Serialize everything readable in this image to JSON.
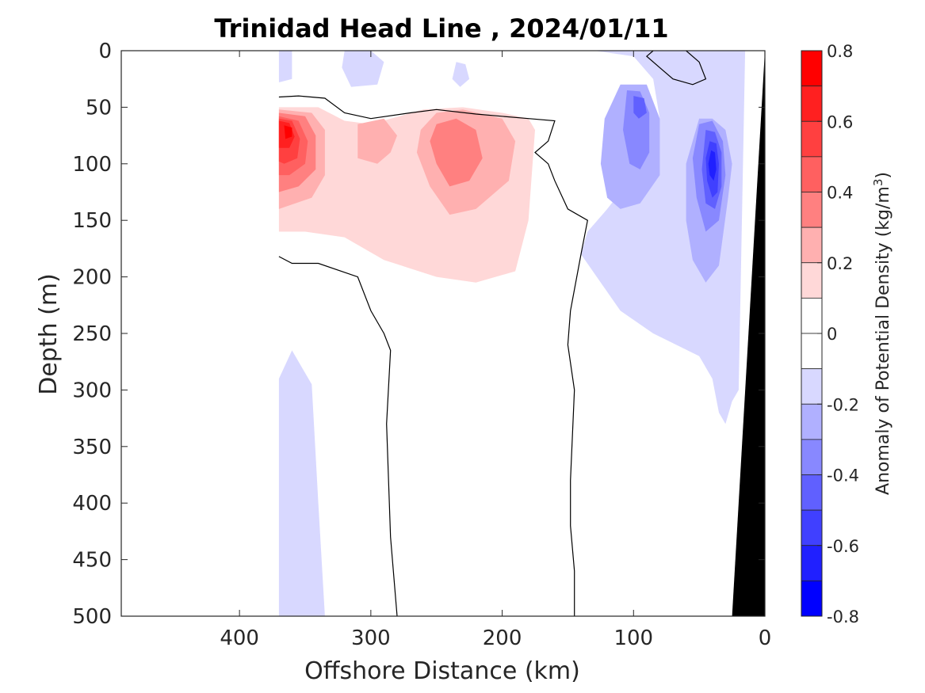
{
  "chart_data": {
    "type": "heatmap",
    "subtype": "filled contour section",
    "title": "Trinidad Head Line , 2024/01/11",
    "xlabel": "Offshore Distance (km)",
    "ylabel": "Depth (m)",
    "colorbar_label": "Anomaly of Potential Density (kg/m",
    "colorbar_label_superscript": "3",
    "colorbar_label_close": ")",
    "xlim": [
      490,
      0
    ],
    "x_reversed": true,
    "ylim": [
      0,
      500
    ],
    "y_reversed": true,
    "x_ticks": [
      "400",
      "300",
      "200",
      "100",
      "0"
    ],
    "x_tick_values": [
      400,
      300,
      200,
      100,
      0
    ],
    "y_ticks": [
      "0",
      "50",
      "100",
      "150",
      "200",
      "250",
      "300",
      "350",
      "400",
      "450",
      "500"
    ],
    "y_tick_values": [
      0,
      50,
      100,
      150,
      200,
      250,
      300,
      350,
      400,
      450,
      500
    ],
    "colorbar_range": [
      -0.8,
      0.8
    ],
    "colorbar_ticks": [
      "0.8",
      "0.6",
      "0.4",
      "0.2",
      "0",
      "-0.2",
      "-0.4",
      "-0.6",
      "-0.8"
    ],
    "colorbar_tick_values": [
      0.8,
      0.6,
      0.4,
      0.2,
      0,
      -0.2,
      -0.4,
      -0.6,
      -0.8
    ],
    "levels": [
      {
        "lo": 0.7,
        "hi": 0.8,
        "color": "#ff0000"
      },
      {
        "lo": 0.6,
        "hi": 0.7,
        "color": "#ff2020"
      },
      {
        "lo": 0.5,
        "hi": 0.6,
        "color": "#ff4040"
      },
      {
        "lo": 0.4,
        "hi": 0.5,
        "color": "#ff6060"
      },
      {
        "lo": 0.3,
        "hi": 0.4,
        "color": "#ff8080"
      },
      {
        "lo": 0.2,
        "hi": 0.3,
        "color": "#ffb0b0"
      },
      {
        "lo": 0.1,
        "hi": 0.2,
        "color": "#ffd8d8"
      },
      {
        "lo": 0.0,
        "hi": 0.1,
        "color": "#ffffff"
      },
      {
        "lo": -0.1,
        "hi": 0.0,
        "color": "#ffffff"
      },
      {
        "lo": -0.2,
        "hi": -0.1,
        "color": "#d8d8ff"
      },
      {
        "lo": -0.3,
        "hi": -0.2,
        "color": "#b0b0ff"
      },
      {
        "lo": -0.4,
        "hi": -0.3,
        "color": "#8888ff"
      },
      {
        "lo": -0.5,
        "hi": -0.4,
        "color": "#6060ff"
      },
      {
        "lo": -0.6,
        "hi": -0.5,
        "color": "#4040ff"
      },
      {
        "lo": -0.7,
        "hi": -0.6,
        "color": "#2020ff"
      },
      {
        "lo": -0.8,
        "hi": -0.7,
        "color": "#0000ff"
      }
    ],
    "regions": [
      {
        "name": "pos-0.1",
        "color": "#ffd8d8",
        "points": [
          [
            370,
            50
          ],
          [
            340,
            50
          ],
          [
            320,
            62
          ],
          [
            300,
            65
          ],
          [
            260,
            52
          ],
          [
            230,
            50
          ],
          [
            200,
            55
          ],
          [
            180,
            60
          ],
          [
            175,
            70
          ],
          [
            180,
            150
          ],
          [
            190,
            195
          ],
          [
            220,
            205
          ],
          [
            250,
            200
          ],
          [
            290,
            185
          ],
          [
            320,
            165
          ],
          [
            350,
            160
          ],
          [
            370,
            160
          ]
        ]
      },
      {
        "name": "pos-0.2",
        "color": "#ffb0b0",
        "points": [
          [
            370,
            52
          ],
          [
            345,
            55
          ],
          [
            335,
            70
          ],
          [
            335,
            110
          ],
          [
            345,
            130
          ],
          [
            370,
            140
          ]
        ]
      },
      {
        "name": "pos-0.2b",
        "color": "#ffb0b0",
        "points": [
          [
            310,
            65
          ],
          [
            290,
            60
          ],
          [
            280,
            75
          ],
          [
            285,
            90
          ],
          [
            295,
            100
          ],
          [
            310,
            95
          ]
        ]
      },
      {
        "name": "pos-0.2c",
        "color": "#ffb0b0",
        "points": [
          [
            250,
            55
          ],
          [
            230,
            52
          ],
          [
            200,
            60
          ],
          [
            190,
            80
          ],
          [
            195,
            115
          ],
          [
            220,
            140
          ],
          [
            240,
            145
          ],
          [
            255,
            120
          ],
          [
            265,
            90
          ],
          [
            262,
            70
          ]
        ]
      },
      {
        "name": "pos-0.3",
        "color": "#ff8080",
        "points": [
          [
            370,
            55
          ],
          [
            350,
            58
          ],
          [
            342,
            75
          ],
          [
            342,
            105
          ],
          [
            355,
            120
          ],
          [
            370,
            125
          ]
        ]
      },
      {
        "name": "pos-0.3b",
        "color": "#ff8080",
        "points": [
          [
            250,
            65
          ],
          [
            235,
            60
          ],
          [
            220,
            70
          ],
          [
            215,
            95
          ],
          [
            225,
            115
          ],
          [
            240,
            120
          ],
          [
            250,
            100
          ],
          [
            255,
            80
          ]
        ]
      },
      {
        "name": "pos-0.4",
        "color": "#ff6060",
        "points": [
          [
            370,
            58
          ],
          [
            355,
            62
          ],
          [
            348,
            80
          ],
          [
            350,
            100
          ],
          [
            362,
            110
          ],
          [
            370,
            110
          ]
        ]
      },
      {
        "name": "pos-0.5",
        "color": "#ff4040",
        "points": [
          [
            370,
            60
          ],
          [
            360,
            62
          ],
          [
            354,
            78
          ],
          [
            356,
            95
          ],
          [
            366,
            100
          ],
          [
            370,
            98
          ]
        ]
      },
      {
        "name": "pos-0.6",
        "color": "#ff2020",
        "points": [
          [
            370,
            62
          ],
          [
            362,
            64
          ],
          [
            358,
            76
          ],
          [
            362,
            86
          ],
          [
            370,
            86
          ]
        ]
      },
      {
        "name": "pos-0.7",
        "color": "#ff0000",
        "points": [
          [
            366,
            66
          ],
          [
            360,
            68
          ],
          [
            360,
            76
          ],
          [
            365,
            78
          ]
        ]
      },
      {
        "name": "pos-top",
        "color": "#ffd8d8",
        "points": [
          [
            65,
            0
          ],
          [
            55,
            8
          ],
          [
            52,
            15
          ],
          [
            60,
            22
          ],
          [
            70,
            20
          ],
          [
            73,
            10
          ]
        ]
      },
      {
        "name": "neg-0.1-left",
        "color": "#d8d8ff",
        "points": [
          [
            370,
            0
          ],
          [
            360,
            0
          ],
          [
            360,
            25
          ],
          [
            370,
            28
          ]
        ]
      },
      {
        "name": "neg-0.1-left2",
        "color": "#d8d8ff",
        "points": [
          [
            320,
            0
          ],
          [
            300,
            0
          ],
          [
            290,
            10
          ],
          [
            295,
            30
          ],
          [
            315,
            32
          ],
          [
            322,
            15
          ]
        ]
      },
      {
        "name": "neg-0.1-left3",
        "color": "#d8d8ff",
        "points": [
          [
            235,
            10
          ],
          [
            228,
            12
          ],
          [
            225,
            25
          ],
          [
            232,
            32
          ],
          [
            238,
            25
          ]
        ]
      },
      {
        "name": "neg-0.1-deep",
        "color": "#d8d8ff",
        "points": [
          [
            370,
            500
          ],
          [
            370,
            290
          ],
          [
            360,
            265
          ],
          [
            345,
            295
          ],
          [
            340,
            400
          ],
          [
            335,
            500
          ]
        ]
      },
      {
        "name": "neg-0.1-right",
        "color": "#d8d8ff",
        "points": [
          [
            130,
            0
          ],
          [
            100,
            5
          ],
          [
            85,
            25
          ],
          [
            80,
            60
          ],
          [
            100,
            110
          ],
          [
            120,
            140
          ],
          [
            135,
            160
          ],
          [
            140,
            180
          ],
          [
            110,
            230
          ],
          [
            85,
            250
          ],
          [
            50,
            270
          ],
          [
            40,
            290
          ],
          [
            35,
            320
          ],
          [
            30,
            330
          ],
          [
            25,
            310
          ],
          [
            20,
            300
          ],
          [
            18,
            180
          ],
          [
            15,
            0
          ]
        ]
      },
      {
        "name": "neg-0.2",
        "color": "#b0b0ff",
        "points": [
          [
            110,
            30
          ],
          [
            90,
            30
          ],
          [
            80,
            60
          ],
          [
            80,
            110
          ],
          [
            95,
            135
          ],
          [
            110,
            140
          ],
          [
            120,
            130
          ],
          [
            125,
            100
          ],
          [
            122,
            60
          ]
        ]
      },
      {
        "name": "neg-0.2b",
        "color": "#b0b0ff",
        "points": [
          [
            50,
            60
          ],
          [
            40,
            60
          ],
          [
            30,
            70
          ],
          [
            25,
            100
          ],
          [
            28,
            130
          ],
          [
            35,
            190
          ],
          [
            45,
            205
          ],
          [
            55,
            185
          ],
          [
            60,
            150
          ],
          [
            60,
            100
          ]
        ]
      },
      {
        "name": "neg-0.3",
        "color": "#8888ff",
        "points": [
          [
            105,
            35
          ],
          [
            95,
            36
          ],
          [
            88,
            55
          ],
          [
            88,
            90
          ],
          [
            95,
            105
          ],
          [
            103,
            100
          ],
          [
            108,
            70
          ]
        ]
      },
      {
        "name": "neg-0.3b",
        "color": "#8888ff",
        "points": [
          [
            50,
            65
          ],
          [
            40,
            62
          ],
          [
            32,
            80
          ],
          [
            30,
            110
          ],
          [
            35,
            150
          ],
          [
            45,
            160
          ],
          [
            52,
            130
          ],
          [
            55,
            95
          ]
        ]
      },
      {
        "name": "neg-0.4",
        "color": "#6060ff",
        "points": [
          [
            100,
            40
          ],
          [
            92,
            42
          ],
          [
            90,
            55
          ],
          [
            96,
            60
          ],
          [
            100,
            55
          ]
        ]
      },
      {
        "name": "neg-0.4b",
        "color": "#6060ff",
        "points": [
          [
            45,
            70
          ],
          [
            38,
            72
          ],
          [
            33,
            90
          ],
          [
            33,
            120
          ],
          [
            38,
            140
          ],
          [
            45,
            135
          ],
          [
            48,
            105
          ]
        ]
      },
      {
        "name": "neg-0.5",
        "color": "#4040ff",
        "points": [
          [
            42,
            80
          ],
          [
            37,
            82
          ],
          [
            35,
            100
          ],
          [
            36,
            125
          ],
          [
            40,
            130
          ],
          [
            44,
            115
          ],
          [
            45,
            95
          ]
        ]
      },
      {
        "name": "neg-0.6",
        "color": "#2020ff",
        "points": [
          [
            41,
            88
          ],
          [
            38,
            90
          ],
          [
            37,
            105
          ],
          [
            39,
            115
          ],
          [
            42,
            110
          ],
          [
            43,
            100
          ]
        ]
      }
    ],
    "zero_contours": [
      {
        "points": [
          [
            370,
            41
          ],
          [
            355,
            40
          ],
          [
            335,
            42
          ],
          [
            320,
            55
          ],
          [
            300,
            60
          ],
          [
            270,
            55
          ],
          [
            250,
            52
          ],
          [
            220,
            56
          ],
          [
            180,
            60
          ],
          [
            160,
            62
          ],
          [
            165,
            80
          ],
          [
            175,
            90
          ],
          [
            165,
            100
          ],
          [
            160,
            115
          ],
          [
            150,
            140
          ],
          [
            135,
            150
          ],
          [
            140,
            180
          ],
          [
            148,
            230
          ],
          [
            150,
            260
          ],
          [
            145,
            300
          ],
          [
            148,
            380
          ],
          [
            148,
            420
          ],
          [
            145,
            460
          ],
          [
            145,
            500
          ]
        ]
      },
      {
        "points": [
          [
            370,
            182
          ],
          [
            360,
            188
          ],
          [
            340,
            188
          ],
          [
            310,
            200
          ],
          [
            300,
            230
          ],
          [
            290,
            250
          ],
          [
            285,
            265
          ],
          [
            288,
            330
          ],
          [
            285,
            430
          ],
          [
            280,
            500
          ]
        ]
      },
      {
        "points": [
          [
            60,
            0
          ],
          [
            50,
            10
          ],
          [
            45,
            25
          ],
          [
            55,
            30
          ],
          [
            70,
            25
          ],
          [
            80,
            15
          ],
          [
            90,
            5
          ],
          [
            85,
            0
          ]
        ]
      }
    ],
    "bathymetry": {
      "color": "#000000",
      "points": [
        [
          0,
          0
        ],
        [
          25,
          500
        ],
        [
          0,
          500
        ]
      ]
    }
  }
}
